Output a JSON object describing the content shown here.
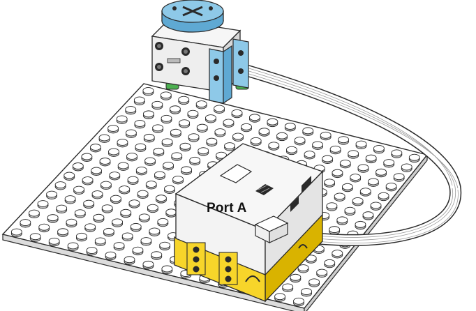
{
  "diagram": {
    "label": "Port A",
    "components": {
      "baseplate": {
        "studs_per_side": 16
      },
      "motor": {
        "icon": "lego-motor-icon"
      },
      "hub": {
        "icon": "lego-hub-icon"
      },
      "cable": {
        "icon": "cable-icon"
      }
    },
    "colors": {
      "outline": "#2a2a2a",
      "baseplate_top": "#ffffff",
      "baseplate_side": "#dcdcdc",
      "stud_fill": "#ffffff",
      "stud_shadow": "#bdbdbd",
      "hub_white": "#f3f3f3",
      "hub_yellow": "#f7d52a",
      "hub_yellow_dark": "#d9b300",
      "motor_blue": "#8ec9e8",
      "motor_blue_dark": "#5fa9d3",
      "motor_white": "#eeeeee",
      "connector_green": "#4caf50",
      "cable": "#ffffff"
    }
  }
}
